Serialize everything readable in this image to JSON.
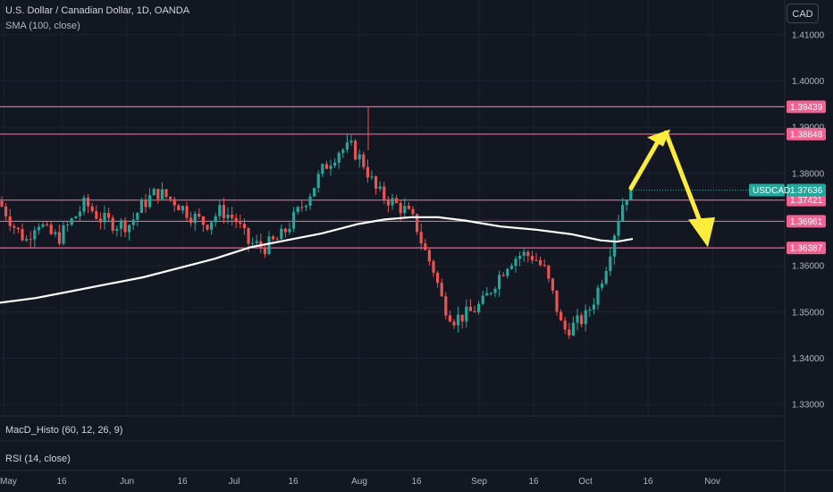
{
  "legend": {
    "title": "U.S. Dollar / Canadian Dollar, 1D, OANDA",
    "sma": "SMA (100, close)"
  },
  "currency_button": "CAD",
  "panes": {
    "macd": "MacD_Histo (60, 12, 26, 9)",
    "rsi": "RSI (14, close)"
  },
  "colors": {
    "up": "#26a69a",
    "down": "#ef5350",
    "sma": "#ffffff",
    "level_line": "#f06292",
    "level_tag": "#f06292",
    "price_tag": "#26a69a",
    "arrow": "#ffeb3b",
    "background": "#131722"
  },
  "chart_data": {
    "type": "candlestick",
    "symbol": "USDCAD",
    "current_price": "1.37636",
    "y_ticks": [
      "1.41000",
      "1.40000",
      "1.39000",
      "1.38000",
      "1.37000",
      "1.36000",
      "1.35000",
      "1.34000",
      "1.33000"
    ],
    "ylim": [
      1.3275,
      1.4175
    ],
    "x_ticks": [
      "May",
      "16",
      "Jun",
      "16",
      "Jul",
      "16",
      "Aug",
      "16",
      "Sep",
      "16",
      "Oct",
      "16",
      "Nov"
    ],
    "levels": [
      "1.39439",
      "1.38848",
      "1.37421",
      "1.36961",
      "1.36387"
    ],
    "projection": "yellow arrows: rise to ~1.3895 then fall to ~1.3640"
  }
}
